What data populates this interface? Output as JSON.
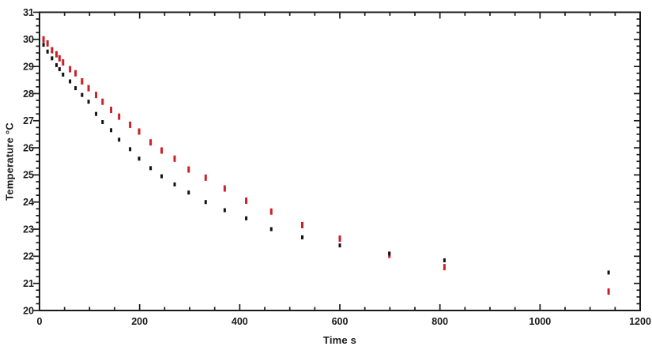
{
  "chart_data": {
    "type": "scatter",
    "title": "",
    "xlabel": "Time s",
    "ylabel": "Temperature °C",
    "xlim": [
      0,
      1200
    ],
    "ylim": [
      20,
      31
    ],
    "x_major_step": 200,
    "x_minor_step": 50,
    "y_major_step": 1,
    "y_minor_step": 0.25,
    "x_tick_labels": [
      "0",
      "200",
      "400",
      "600",
      "800",
      "1000",
      "1200"
    ],
    "y_tick_labels": [
      "20",
      "21",
      "22",
      "23",
      "24",
      "25",
      "26",
      "27",
      "28",
      "29",
      "30",
      "31"
    ],
    "grid": false,
    "legend": "none",
    "frame_color": "#1a1a1a",
    "background_color": "#ffffff",
    "series": [
      {
        "name": "red-series",
        "color": "#cc2027",
        "marker": "vertical-dash",
        "marker_w": 3,
        "marker_h": 8,
        "points": [
          [
            8,
            30.0
          ],
          [
            16,
            29.85
          ],
          [
            25,
            29.6
          ],
          [
            34,
            29.45
          ],
          [
            40,
            29.3
          ],
          [
            47,
            29.15
          ],
          [
            61,
            28.9
          ],
          [
            72,
            28.75
          ],
          [
            85,
            28.45
          ],
          [
            98,
            28.2
          ],
          [
            113,
            27.95
          ],
          [
            126,
            27.7
          ],
          [
            143,
            27.4
          ],
          [
            159,
            27.15
          ],
          [
            181,
            26.85
          ],
          [
            199,
            26.6
          ],
          [
            222,
            26.2
          ],
          [
            244,
            25.9
          ],
          [
            270,
            25.6
          ],
          [
            298,
            25.2
          ],
          [
            332,
            24.9
          ],
          [
            370,
            24.5
          ],
          [
            413,
            24.05
          ],
          [
            463,
            23.65
          ],
          [
            525,
            23.15
          ],
          [
            600,
            22.65
          ],
          [
            699,
            22.05
          ],
          [
            809,
            21.6
          ],
          [
            1137,
            20.7
          ]
        ]
      },
      {
        "name": "black-series",
        "color": "#111111",
        "marker": "vertical-dash",
        "marker_w": 3,
        "marker_h": 5,
        "points": [
          [
            8,
            29.8
          ],
          [
            16,
            29.55
          ],
          [
            25,
            29.3
          ],
          [
            34,
            29.05
          ],
          [
            40,
            28.9
          ],
          [
            47,
            28.7
          ],
          [
            61,
            28.45
          ],
          [
            72,
            28.2
          ],
          [
            85,
            27.95
          ],
          [
            98,
            27.7
          ],
          [
            113,
            27.25
          ],
          [
            126,
            26.95
          ],
          [
            143,
            26.65
          ],
          [
            159,
            26.3
          ],
          [
            181,
            25.95
          ],
          [
            199,
            25.6
          ],
          [
            222,
            25.25
          ],
          [
            244,
            24.95
          ],
          [
            270,
            24.65
          ],
          [
            298,
            24.35
          ],
          [
            332,
            24.0
          ],
          [
            370,
            23.7
          ],
          [
            413,
            23.4
          ],
          [
            463,
            23.0
          ],
          [
            525,
            22.7
          ],
          [
            600,
            22.4
          ],
          [
            699,
            22.1
          ],
          [
            809,
            21.85
          ],
          [
            1137,
            21.4
          ]
        ]
      }
    ]
  }
}
